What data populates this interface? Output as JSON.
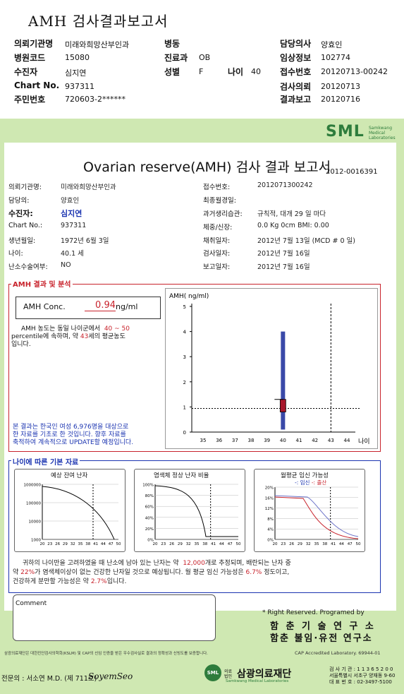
{
  "cover": {
    "title": "AMH 검사결과보고서",
    "rows": [
      {
        "label": "의뢰기관명",
        "value": "미래와희망산부인과"
      },
      {
        "label": "병원코드",
        "value": "15080"
      },
      {
        "label": "수진자",
        "value": "심지연"
      },
      {
        "label": "Chart No.",
        "value": "937311"
      },
      {
        "label": "주민번호",
        "value": "720603-2******"
      }
    ],
    "mid": [
      {
        "label": "병동",
        "value": ""
      },
      {
        "label": "진료과",
        "value": "OB"
      },
      {
        "label": "성별",
        "value": "F"
      }
    ],
    "age_label": "나이",
    "age_value": "40",
    "right": [
      {
        "label": "담당의사",
        "value": "양효인"
      },
      {
        "label": "임상정보",
        "value": "102774"
      },
      {
        "label": "접수번호",
        "value": "20120713-00242"
      },
      {
        "label": "검사의뢰",
        "value": "20120713"
      },
      {
        "label": "결과보고",
        "value": "20120716"
      }
    ]
  },
  "report": {
    "logo": "SML",
    "logo_sub": "Samkwang Medical Laboratories",
    "title": "Ovarian reserve(AMH) 검사 결과 보고서",
    "number": "2012-0016391",
    "left": [
      {
        "label": "의뢰기관명:",
        "value": "미래와희망산부인과"
      },
      {
        "label": "담당의:",
        "value": "양효인"
      },
      {
        "label": "수진자:",
        "value": "심지연"
      },
      {
        "label": "Chart No.:",
        "value": "937311"
      },
      {
        "label": "생년월일:",
        "value": "1972년 6월 3일"
      },
      {
        "label": "나이:",
        "value": "40.1 세"
      },
      {
        "label": "난소수술여부:",
        "value": "NO"
      }
    ],
    "right": [
      {
        "label": "접수번호:",
        "value": "2012071300242"
      },
      {
        "label": "최종월경일:",
        "value": ""
      },
      {
        "label": "과거생리습관:",
        "value": "규칙적, 대개   29 일 마다"
      },
      {
        "label": "체중/신장:",
        "value": "0.0  Kg       0cm     BMI:  0.00"
      },
      {
        "label": "채취일자:",
        "value": "2012년 7월 13일   (MCD #  0 일)"
      },
      {
        "label": "검사일자:",
        "value": "2012년 7월 16일"
      },
      {
        "label": "보고일자:",
        "value": "2012년 7월 16일"
      }
    ]
  },
  "amh": {
    "section_title": "AMH 결과 및 분석",
    "conc_label": "AMH Conc.",
    "conc_value": "0.94",
    "conc_unit": "ng/ml",
    "text1_a": "AMH 농도는 동일 나이군에서",
    "text1_b": "40 ~  50",
    "text2_a": "percentile에 속하며,  약",
    "text2_b": "43",
    "text2_c": "세의 평균농도",
    "text3": "입니다.",
    "note1": "본 결과는 한국인 여성 6,976명을 대상으로",
    "note2": "한 자료를 기초로 한 것입니다. 향후 자료를",
    "note3": "축적하여 계속적으로 UPDATE할 예정입니다."
  },
  "chart_data": [
    {
      "type": "box",
      "ylabel": "AMH( ng/ml)",
      "xlabel": "나이",
      "x_ticks": [
        35,
        36,
        37,
        38,
        39,
        40,
        41,
        42,
        43,
        44
      ],
      "y_ticks": [
        0,
        1,
        2,
        3,
        4,
        5
      ],
      "ylim": [
        0,
        5
      ],
      "whisker": [
        0.1,
        4.0
      ],
      "box": [
        0.8,
        1.3
      ],
      "box_x": 40,
      "patient_value": 0.94,
      "dashed_x": 43
    },
    {
      "type": "line",
      "title": "예상 잔여 난자",
      "y_scale": "log",
      "y_ticks": [
        "1000000",
        "100000",
        "10000",
        "1000"
      ],
      "x_ticks": [
        20,
        23,
        26,
        29,
        32,
        35,
        38,
        41,
        44,
        47,
        50
      ]
    },
    {
      "type": "line",
      "title": "염색체 정상 난자 비율",
      "y_ticks": [
        "100%",
        "80%",
        "60%",
        "40%",
        "20%",
        "0%"
      ],
      "x_ticks": [
        20,
        23,
        26,
        29,
        32,
        35,
        38,
        41,
        44,
        47,
        50
      ]
    },
    {
      "type": "line",
      "title": "월평균 임신 가능성",
      "legend": [
        "임신",
        "출산"
      ],
      "legend_prefix": "-: ",
      "legend_sep": " -: ",
      "y_ticks": [
        "20%",
        "16%",
        "12%",
        "8%",
        "4%",
        "0%"
      ],
      "x_ticks": [
        20,
        23,
        26,
        29,
        32,
        35,
        38,
        41,
        44,
        47,
        50
      ]
    }
  ],
  "age": {
    "section_title": "나이에 따른 기본 자료",
    "s1_a": "귀하의 나이만을 고려하였을 때 난소에 남아 있는 난자는 약",
    "s1_b": "12,000",
    "s1_c": "개로 추정되며, 배란되는 난자 중",
    "s2_a": "약",
    "s2_b": "22%",
    "s2_c": "가 염색체이상이 없는 건강한 난자일 것으로 예상됩니다. 월 평균 임신 가능성은",
    "s2_d": "6.7%",
    "s2_e": "정도이고,",
    "s3_a": "건강하게 분만할 가능성은 약",
    "s3_b": "2.7%",
    "s3_c": "입니다."
  },
  "footer": {
    "comment_label": "Comment",
    "rights": "* Right Reserved. Programed by",
    "inst1": "함 춘  기 술  연 구 소",
    "inst2": "함춘 불임·유전 연구소",
    "accred": "삼광의료재단은 대한진단검사의학회(KSLM) 및 CAP의 신임 인증을 받은 우수검사실로 결과의 정확성과 신빙도를 보증합니다.",
    "cap": "CAP  Accredited  Laboratory.  69944-01",
    "doctor": "전문의 : 서소연 M.D. (제 711호)",
    "signature": "SoyemSeo",
    "lab_logo": "SML",
    "lab_prefix": "의료법인",
    "lab_name": "삼광의료재단",
    "lab_eng": "Samkwang Medical Laboratories",
    "lab_info1": "검 사 기 관 : 1 1 3 6 5 2 0 0",
    "lab_info2": "서울특별시 서초구 양재동 9-60",
    "lab_info3": "대 표 번 호 : 02-3497-5100"
  }
}
